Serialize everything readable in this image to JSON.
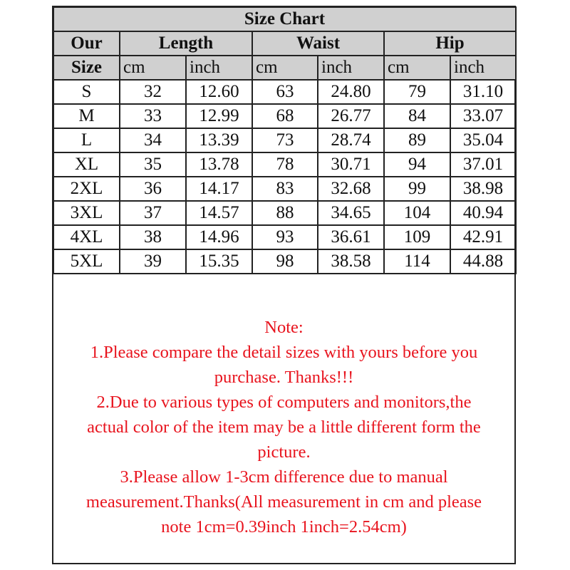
{
  "title": "Size Chart",
  "headers": {
    "size_line1": "Our",
    "size_line2": "Size",
    "groups": [
      "Length",
      "Waist",
      "Hip"
    ],
    "units": [
      "cm",
      "inch",
      "cm",
      "inch",
      "cm",
      "inch"
    ]
  },
  "rows": [
    [
      "S",
      "32",
      "12.60",
      "63",
      "24.80",
      "79",
      "31.10"
    ],
    [
      "M",
      "33",
      "12.99",
      "68",
      "26.77",
      "84",
      "33.07"
    ],
    [
      "L",
      "34",
      "13.39",
      "73",
      "28.74",
      "89",
      "35.04"
    ],
    [
      "XL",
      "35",
      "13.78",
      "78",
      "30.71",
      "94",
      "37.01"
    ],
    [
      "2XL",
      "36",
      "14.17",
      "83",
      "32.68",
      "99",
      "38.98"
    ],
    [
      "3XL",
      "37",
      "14.57",
      "88",
      "34.65",
      "104",
      "40.94"
    ],
    [
      "4XL",
      "38",
      "14.96",
      "93",
      "36.61",
      "109",
      "42.91"
    ],
    [
      "5XL",
      "39",
      "15.35",
      "98",
      "38.58",
      "114",
      "44.88"
    ]
  ],
  "note": {
    "lines": [
      "Note:",
      "1.Please compare the detail sizes with yours before you",
      "purchase. Thanks!!!",
      "2.Due to various types of computers and monitors,the",
      "actual color of the item may be a little different form the",
      "picture.",
      "3.Please allow 1-3cm difference due to manual",
      "measurement.Thanks(All measurement in cm and please",
      "note 1cm=0.39inch 1inch=2.54cm)"
    ],
    "color": "#e8141e"
  },
  "colors": {
    "header_bg": "#d0d0d0",
    "border": "#222222"
  }
}
